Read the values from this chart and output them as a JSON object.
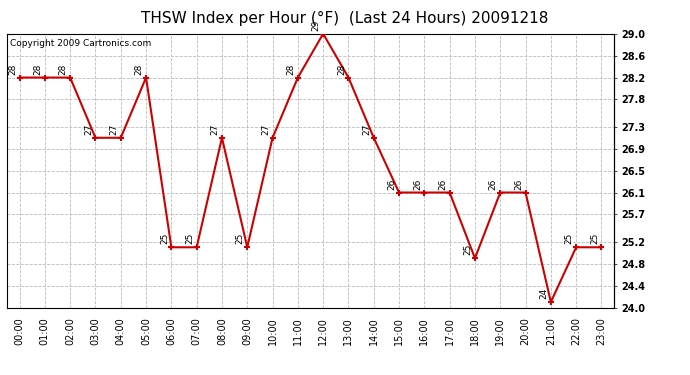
{
  "title": "THSW Index per Hour (°F)  (Last 24 Hours) 20091218",
  "copyright": "Copyright 2009 Cartronics.com",
  "hours": [
    "00:00",
    "01:00",
    "02:00",
    "03:00",
    "04:00",
    "05:00",
    "06:00",
    "07:00",
    "08:00",
    "09:00",
    "10:00",
    "11:00",
    "12:00",
    "13:00",
    "14:00",
    "15:00",
    "16:00",
    "17:00",
    "18:00",
    "19:00",
    "20:00",
    "21:00",
    "22:00",
    "23:00"
  ],
  "values": [
    28.2,
    28.2,
    28.2,
    27.1,
    27.1,
    28.2,
    25.1,
    25.1,
    27.1,
    25.1,
    27.1,
    28.2,
    29.0,
    28.2,
    27.1,
    26.1,
    26.1,
    26.1,
    24.9,
    26.1,
    26.1,
    24.1,
    25.1,
    25.1
  ],
  "ylim_min": 24.0,
  "ylim_max": 29.0,
  "yticks": [
    24.0,
    24.4,
    24.8,
    25.2,
    25.7,
    26.1,
    26.5,
    26.9,
    27.3,
    27.8,
    28.2,
    28.6,
    29.0
  ],
  "line_color": "#cc0000",
  "marker_color": "#cc0000",
  "bg_color": "#ffffff",
  "grid_color": "#bbbbbb",
  "title_fontsize": 11,
  "label_fontsize": 7,
  "annotation_fontsize": 6.5,
  "copyright_fontsize": 6.5
}
